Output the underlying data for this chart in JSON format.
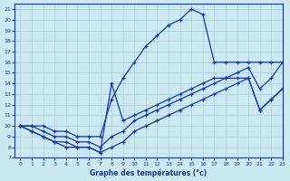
{
  "xlabel": "Graphe des températures (°c)",
  "xlim": [
    -0.5,
    23
  ],
  "ylim": [
    7,
    21.5
  ],
  "xticks": [
    0,
    1,
    2,
    3,
    4,
    5,
    6,
    7,
    8,
    9,
    10,
    11,
    12,
    13,
    14,
    15,
    16,
    17,
    18,
    19,
    20,
    21,
    22,
    23
  ],
  "yticks": [
    7,
    8,
    9,
    10,
    11,
    12,
    13,
    14,
    15,
    16,
    17,
    18,
    19,
    20,
    21
  ],
  "bg_color": "#cce8f0",
  "line_color": "#1a35b0",
  "grid_color": "#aaccd8",
  "series": [
    {
      "x": [
        0,
        1,
        2,
        3,
        4,
        5,
        6,
        7,
        8,
        9,
        10,
        11,
        12,
        13,
        14,
        15,
        16,
        17,
        18,
        19,
        20,
        21,
        22,
        23
      ],
      "y": [
        10,
        10,
        10,
        9.5,
        9.5,
        9,
        9,
        9,
        12.5,
        14.5,
        16,
        17.5,
        18.5,
        19.5,
        20,
        21,
        20.5,
        16,
        16,
        16,
        16,
        16,
        16,
        16
      ]
    },
    {
      "x": [
        0,
        1,
        2,
        3,
        4,
        5,
        6,
        7,
        8,
        9,
        10,
        11,
        12,
        13,
        14,
        15,
        16,
        17,
        18,
        19,
        20,
        21,
        22,
        23
      ],
      "y": [
        10,
        10,
        9.5,
        9,
        9,
        8.5,
        8.5,
        8,
        9,
        9.5,
        10.5,
        11,
        11.5,
        12,
        12.5,
        13,
        13.5,
        14,
        14.5,
        15,
        15.5,
        13.5,
        14.5,
        16
      ]
    },
    {
      "x": [
        0,
        1,
        2,
        3,
        4,
        5,
        6,
        7,
        8,
        9,
        10,
        11,
        12,
        13,
        14,
        15,
        16,
        17,
        18,
        19,
        20,
        21,
        22,
        23
      ],
      "y": [
        10,
        9.5,
        9,
        8.5,
        8.5,
        8,
        8,
        7.5,
        8,
        8.5,
        9.5,
        10,
        10.5,
        11,
        11.5,
        12,
        12.5,
        13,
        13.5,
        14,
        14.5,
        11.5,
        12.5,
        13.5
      ]
    },
    {
      "x": [
        0,
        1,
        2,
        3,
        4,
        5,
        6,
        7,
        8,
        9,
        10,
        11,
        12,
        13,
        14,
        15,
        16,
        17,
        18,
        19,
        20,
        21,
        22,
        23
      ],
      "y": [
        10,
        9.5,
        9,
        8.5,
        8,
        8,
        8,
        7.5,
        14,
        10.5,
        11,
        11.5,
        12,
        12.5,
        13,
        13.5,
        14,
        14.5,
        14.5,
        14.5,
        14.5,
        11.5,
        12.5,
        13.5
      ]
    }
  ]
}
